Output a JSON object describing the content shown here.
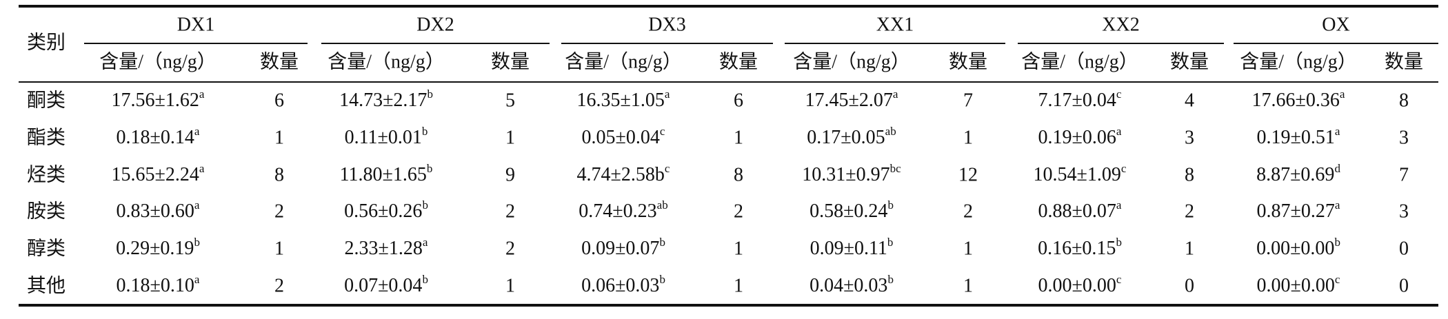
{
  "header": {
    "label": "类别",
    "groups": [
      {
        "name": "DX1",
        "sub": [
          "含量/（ng/g）",
          "数量"
        ]
      },
      {
        "name": "DX2",
        "sub": [
          "含量/（ng/g）",
          "数量"
        ]
      },
      {
        "name": "DX3",
        "sub": [
          "含量/（ng/g）",
          "数量"
        ]
      },
      {
        "name": "XX1",
        "sub": [
          "含量/（ng/g）",
          "数量"
        ]
      },
      {
        "name": "XX2",
        "sub": [
          "含量/（ng/g）",
          "数量"
        ]
      },
      {
        "name": "OX",
        "sub": [
          "含量/（ng/g）",
          "数量"
        ]
      }
    ]
  },
  "table": {
    "rows": [
      {
        "label": "酮类",
        "cells": [
          [
            "17.56±1.62",
            "a",
            6
          ],
          [
            "14.73±2.17",
            "b",
            5
          ],
          [
            "16.35±1.05",
            "a",
            6
          ],
          [
            "17.45±2.07",
            "a",
            7
          ],
          [
            "7.17±0.04",
            "c",
            4
          ],
          [
            "17.66±0.36",
            "a",
            8
          ]
        ]
      },
      {
        "label": "酯类",
        "cells": [
          [
            "0.18±0.14",
            "a",
            1
          ],
          [
            "0.11±0.01",
            "b",
            1
          ],
          [
            "0.05±0.04",
            "c",
            1
          ],
          [
            "0.17±0.05",
            "ab",
            1
          ],
          [
            "0.19±0.06",
            "a",
            3
          ],
          [
            "0.19±0.51",
            "a",
            3
          ]
        ]
      },
      {
        "label": "烃类",
        "cells": [
          [
            "15.65±2.24",
            "a",
            8
          ],
          [
            "11.80±1.65",
            "b",
            9
          ],
          [
            "4.74±2.58b",
            "c",
            8
          ],
          [
            "10.31±0.97",
            "bc",
            12
          ],
          [
            "10.54±1.09",
            "c",
            8
          ],
          [
            "8.87±0.69",
            "d",
            7
          ]
        ]
      },
      {
        "label": "胺类",
        "cells": [
          [
            "0.83±0.60",
            "a",
            2
          ],
          [
            "0.56±0.26",
            "b",
            2
          ],
          [
            "0.74±0.23",
            "ab",
            2
          ],
          [
            "0.58±0.24",
            "b",
            2
          ],
          [
            "0.88±0.07",
            "a",
            2
          ],
          [
            "0.87±0.27",
            "a",
            3
          ]
        ]
      },
      {
        "label": "醇类",
        "cells": [
          [
            "0.29±0.19",
            "b",
            1
          ],
          [
            "2.33±1.28",
            "a",
            2
          ],
          [
            "0.09±0.07",
            "b",
            1
          ],
          [
            "0.09±0.11",
            "b",
            1
          ],
          [
            "0.16±0.15",
            "b",
            1
          ],
          [
            "0.00±0.00",
            "b",
            0
          ]
        ]
      },
      {
        "label": "其他",
        "cells": [
          [
            "0.18±0.10",
            "a",
            2
          ],
          [
            "0.07±0.04",
            "b",
            1
          ],
          [
            "0.06±0.03",
            "b",
            1
          ],
          [
            "0.04±0.03",
            "b",
            1
          ],
          [
            "0.00±0.00",
            "c",
            0
          ],
          [
            "0.00±0.00",
            "c",
            0
          ]
        ]
      }
    ]
  }
}
